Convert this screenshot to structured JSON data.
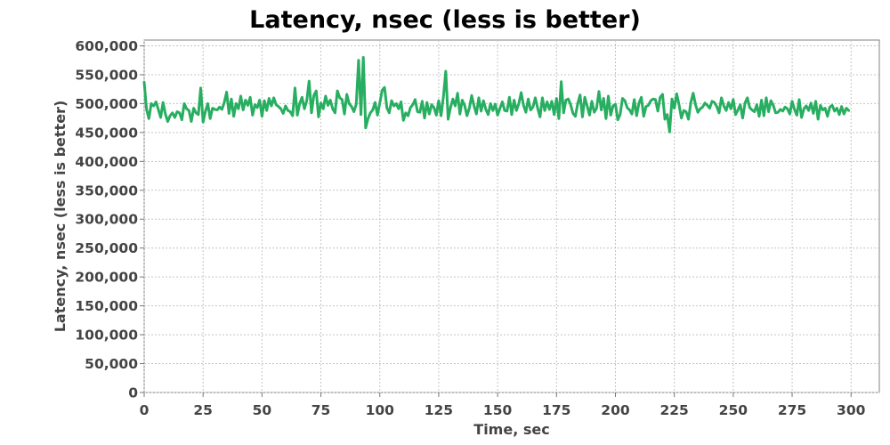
{
  "chart_data": {
    "type": "line",
    "title": "Latency, nsec (less is better)",
    "xlabel": "Time, sec",
    "ylabel": "Latency, nsec (less is better)",
    "xlim": [
      0,
      312
    ],
    "ylim": [
      0,
      610000
    ],
    "x_ticks": [
      0,
      25,
      50,
      75,
      100,
      125,
      150,
      175,
      200,
      225,
      250,
      275,
      300
    ],
    "x_tick_labels": [
      "0",
      "25",
      "50",
      "75",
      "100",
      "125",
      "150",
      "175",
      "200",
      "225",
      "250",
      "275",
      "300"
    ],
    "y_ticks": [
      0,
      50000,
      100000,
      150000,
      200000,
      250000,
      300000,
      350000,
      400000,
      450000,
      500000,
      550000,
      600000
    ],
    "y_tick_labels": [
      "0",
      "50,000",
      "100,000",
      "150,000",
      "200,000",
      "250,000",
      "300,000",
      "350,000",
      "400,000",
      "450,000",
      "500,000",
      "550,000",
      "600,000"
    ],
    "grid": true,
    "legend": "none",
    "series": [
      {
        "color": "#27ae60",
        "x_start": 0,
        "x_step": 1,
        "values": [
          537000,
          490000,
          474000,
          500000,
          496000,
          503000,
          490000,
          476000,
          502000,
          482000,
          469000,
          479000,
          484000,
          476000,
          486000,
          484000,
          472000,
          500000,
          491000,
          488000,
          469000,
          492000,
          484000,
          481000,
          527000,
          468000,
          487000,
          500000,
          474000,
          492000,
          490000,
          489000,
          494000,
          490000,
          502000,
          520000,
          483000,
          508000,
          478000,
          500000,
          491000,
          513000,
          489000,
          506000,
          497000,
          511000,
          480000,
          498000,
          493000,
          506000,
          478000,
          505000,
          488000,
          509000,
          496000,
          510000,
          498000,
          495000,
          491000,
          483000,
          496000,
          488000,
          486000,
          479000,
          527000,
          480000,
          500000,
          511000,
          491000,
          505000,
          539000,
          484000,
          514000,
          522000,
          477000,
          501000,
          491000,
          513000,
          497000,
          506000,
          491000,
          484000,
          522000,
          510000,
          507000,
          482000,
          516000,
          500000,
          495000,
          486000,
          499000,
          575000,
          481000,
          580000,
          458000,
          474000,
          484000,
          489000,
          502000,
          480000,
          501000,
          523000,
          528000,
          493000,
          484000,
          505000,
          496000,
          500000,
          491000,
          503000,
          471000,
          484000,
          479000,
          493000,
          498000,
          507000,
          486000,
          485000,
          504000,
          475000,
          502000,
          482000,
          498000,
          493000,
          480000,
          505000,
          479000,
          512000,
          556000,
          473000,
          493000,
          508000,
          496000,
          518000,
          482000,
          506000,
          497000,
          479000,
          492000,
          514000,
          496000,
          482000,
          510000,
          487000,
          505000,
          490000,
          481000,
          500000,
          488000,
          499000,
          480000,
          492000,
          503000,
          488000,
          487000,
          511000,
          481000,
          506000,
          488000,
          500000,
          519000,
          497000,
          485000,
          508000,
          489000,
          494000,
          510000,
          492000,
          477000,
          510000,
          488000,
          503000,
          490000,
          504000,
          481000,
          509000,
          474000,
          538000,
          484000,
          506000,
          508000,
          498000,
          483000,
          478000,
          500000,
          515000,
          477000,
          511000,
          496000,
          480000,
          504000,
          485000,
          492000,
          521000,
          489000,
          509000,
          474000,
          513000,
          480000,
          496000,
          499000,
          472000,
          481000,
          509000,
          505000,
          493000,
          489000,
          482000,
          507000,
          479000,
          501000,
          511000,
          478000,
          495000,
          497000,
          505000,
          508000,
          507000,
          487000,
          511000,
          516000,
          473000,
          481000,
          451000,
          508000,
          492000,
          517000,
          498000,
          475000,
          488000,
          486000,
          473000,
          502000,
          518000,
          498000,
          485000,
          491000,
          494000,
          501000,
          497000,
          492000,
          504000,
          502000,
          495000,
          484000,
          510000,
          496000,
          488000,
          502000,
          491000,
          507000,
          481000,
          489000,
          498000,
          475000,
          501000,
          510000,
          493000,
          489000,
          486000,
          498000,
          478000,
          506000,
          479000,
          510000,
          486000,
          505000,
          497000,
          484000,
          485000,
          490000,
          487000,
          494000,
          491000,
          482000,
          504000,
          490000,
          480000,
          507000,
          476000,
          491000,
          496000,
          488000,
          501000,
          483000,
          504000,
          473000,
          497000,
          489000,
          492000,
          478000,
          494000,
          497000,
          487000,
          492000,
          481000,
          495000,
          482000,
          492000,
          488000
        ]
      }
    ]
  }
}
